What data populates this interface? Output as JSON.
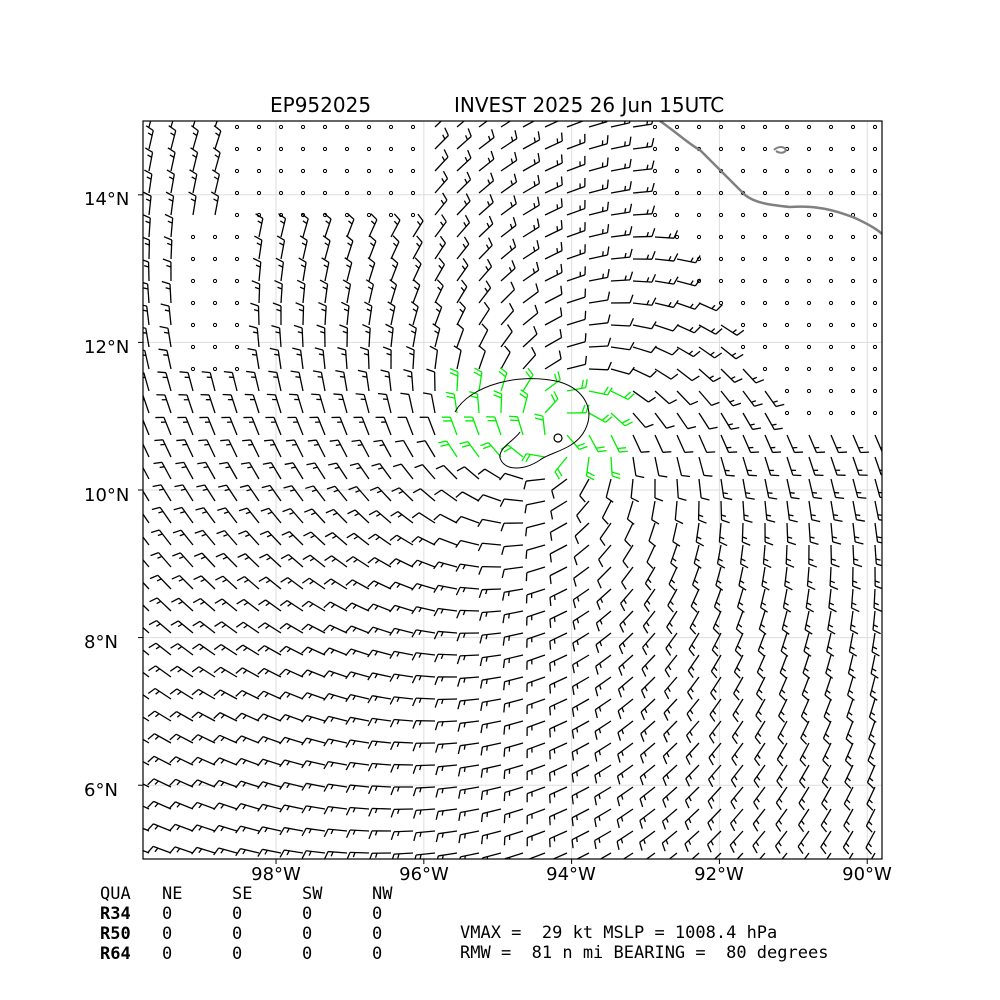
{
  "header": {
    "storm_id": "EP952025",
    "storm_label": "INVEST 2025 26 Jun 15UTC"
  },
  "map": {
    "lon_range": [
      -99.8,
      -89.8
    ],
    "lat_range": [
      5.0,
      15.0
    ],
    "lon_ticks": [
      "98°W",
      "96°W",
      "94°W",
      "92°W",
      "90°W"
    ],
    "lat_ticks": [
      "14°N",
      "12°N",
      "10°N",
      "8°N",
      "6°N"
    ],
    "center": {
      "lon": -94.2,
      "lat": 10.7
    },
    "coastline_color": "#808080",
    "barb_color": "#000000",
    "highlight_barb_color": "#00ee00",
    "contour_color": "#000000",
    "grid": true
  },
  "table": {
    "columns": [
      "QUA",
      "NE",
      "SE",
      "SW",
      "NW"
    ],
    "rows": [
      {
        "label": "R34",
        "values": [
          "0",
          "0",
          "0",
          "0"
        ]
      },
      {
        "label": "R50",
        "values": [
          "0",
          "0",
          "0",
          "0"
        ]
      },
      {
        "label": "R64",
        "values": [
          "0",
          "0",
          "0",
          "0"
        ]
      }
    ]
  },
  "stats": {
    "line1": "VMAX =  29 kt MSLP = 1008.4 hPa",
    "line2": "RMW =  81 n mi BEARING =  80 degrees"
  }
}
